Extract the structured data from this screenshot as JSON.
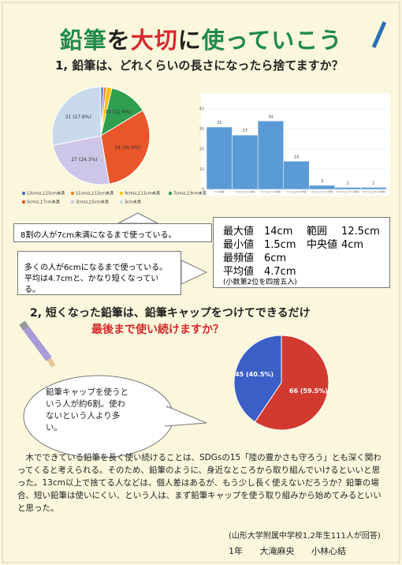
{
  "title": {
    "parts": [
      "鉛筆",
      "を",
      "大切",
      "に",
      "使っていこう"
    ]
  },
  "question1": "1, 鉛筆は、どれくらいの長さになったら捨てますか？",
  "chart_data": [
    {
      "type": "pie",
      "categories": [
        "13cm以上15cm未満",
        "11cm以上13cm未満",
        "9cm以上11cm未満",
        "7cm以上9cm未満",
        "5cm以上7cm未満",
        "3cm以上5cm未満",
        "3cm未満"
      ],
      "values": [
        1,
        1,
        2,
        14,
        34,
        27,
        31
      ],
      "value_labels": [
        null,
        null,
        null,
        "14 (12.6%)",
        "34 (30.6%)",
        "27 (24.3%)",
        "31 (27.9%)"
      ],
      "colors": [
        "#4472c4",
        "#ed7d31",
        "#ffc000",
        "#2e9e4f",
        "#e8562a",
        "#cdc6e8",
        "#c9d9ec"
      ]
    },
    {
      "type": "bar",
      "categories": [
        "3cm未満",
        "3cm以上5cm未満",
        "5cm以上7cm未満",
        "7cm以上9cm未満",
        "9cm以上11cm未満",
        "11cm以上13cm未満",
        "13cm以上15cm未満"
      ],
      "values": [
        31,
        27,
        34,
        14,
        2,
        1,
        1
      ],
      "color": "#5b9bd5",
      "ylim": [
        0,
        40
      ],
      "yticks": [
        0,
        10,
        20,
        30,
        40
      ],
      "grid": true
    },
    {
      "type": "pie",
      "values": [
        66,
        45
      ],
      "value_labels": [
        "66 (59.5%)",
        "45 (40.5%)"
      ],
      "colors": [
        "#d23a30",
        "#3b5fc6"
      ]
    }
  ],
  "callouts": [
    "8割の人が7cm未満になるまで使っている。",
    "多くの人が6cmになるまで使っている。平均は4.7cmと、かなり短くなっている。"
  ],
  "stats": {
    "rows": [
      [
        "最大値",
        "14cm",
        "範囲",
        "12.5cm"
      ],
      [
        "最小値",
        "1.5cm",
        "中央値",
        "4cm"
      ],
      [
        "最頻値",
        "6cm"
      ],
      [
        "平均値",
        "4.7cm"
      ]
    ],
    "note": "(小数第2位を四捨五入)"
  },
  "question2": {
    "line1": "2, 短くなった鉛筆は、鉛筆キャップをつけてできるだけ",
    "line2": "最後まで使い続けますか？"
  },
  "bubble": "鉛筆キャップを使うという人が約6割。使わないという人より多い。",
  "paragraph": "木でできている鉛筆を長く使い続けることは、SDGsの15「陸の豊かさも守ろう」とも深く関わってくると考えられる。そのため、鉛筆のように、身近なところから取り組んでいけるといいと思った。13cm以上で捨てる人などは、個人差はあるが、もう少し長く使えないだろうか？鉛筆の場合、短い鉛筆は使いにくい、という人は、まず鉛筆キャップを使う取り組みから始めてみるといいと思った。",
  "source": "(山形大学附属中学校1,2年生111人が回答)",
  "authors": [
    "1年",
    "大滝麻央",
    "小林心結"
  ]
}
